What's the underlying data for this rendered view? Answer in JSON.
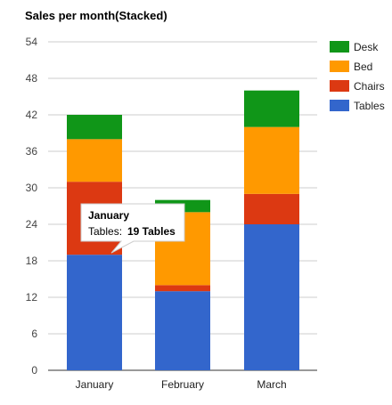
{
  "chart_data": {
    "type": "bar",
    "stacked": true,
    "title": "Sales per month(Stacked)",
    "xlabel": "",
    "ylabel": "",
    "categories": [
      "January",
      "February",
      "March"
    ],
    "series": [
      {
        "name": "Tables",
        "color": "#3366cc",
        "values": [
          19,
          13,
          24
        ]
      },
      {
        "name": "Chairs",
        "color": "#dc3912",
        "values": [
          12,
          1,
          5
        ]
      },
      {
        "name": "Bed",
        "color": "#ff9900",
        "values": [
          7,
          12,
          11
        ]
      },
      {
        "name": "Desk",
        "color": "#109618",
        "values": [
          4,
          2,
          6
        ]
      }
    ],
    "yticks": [
      0,
      6,
      12,
      18,
      24,
      30,
      36,
      42,
      48,
      54
    ],
    "ylim": [
      0,
      54
    ],
    "grid": true,
    "legend": {
      "position": "right",
      "order": [
        "Desk",
        "Bed",
        "Chairs",
        "Tables"
      ]
    },
    "tooltip": {
      "title": "January",
      "series_label": "Tables:",
      "value_text": "19 Tables"
    }
  }
}
